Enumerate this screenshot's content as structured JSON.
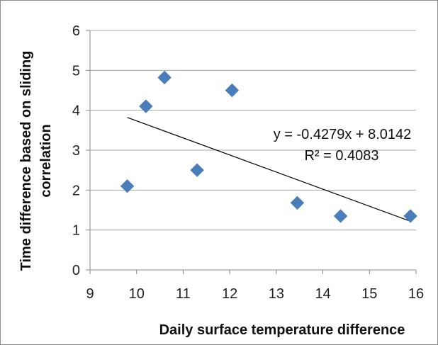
{
  "chart_data": {
    "type": "scatter",
    "title": "",
    "xlabel": "Daily surface temperature difference",
    "ylabel_lines": [
      "Time difference based on sliding",
      "correlation"
    ],
    "xlim": [
      9,
      16
    ],
    "ylim": [
      0,
      6
    ],
    "x_ticks": [
      "9",
      "10",
      "11",
      "12",
      "13",
      "14",
      "15",
      "16"
    ],
    "y_ticks": [
      "0",
      "1",
      "2",
      "3",
      "4",
      "5",
      "6"
    ],
    "grid": "horizontal",
    "legend": "none",
    "marker": "diamond",
    "marker_color": "#4a7ebb",
    "x": [
      9.8,
      10.2,
      10.6,
      11.3,
      12.05,
      13.45,
      14.38,
      15.88
    ],
    "y": [
      2.1,
      4.1,
      4.82,
      2.5,
      4.5,
      1.68,
      1.35,
      1.35
    ],
    "trendline": {
      "type": "linear",
      "slope": -0.4279,
      "intercept": 8.0142,
      "x_range": [
        9.8,
        15.88
      ],
      "color": "#000000",
      "equation": "y = -0.4279x + 8.0142",
      "r_squared": "R² = 0.4083"
    }
  }
}
